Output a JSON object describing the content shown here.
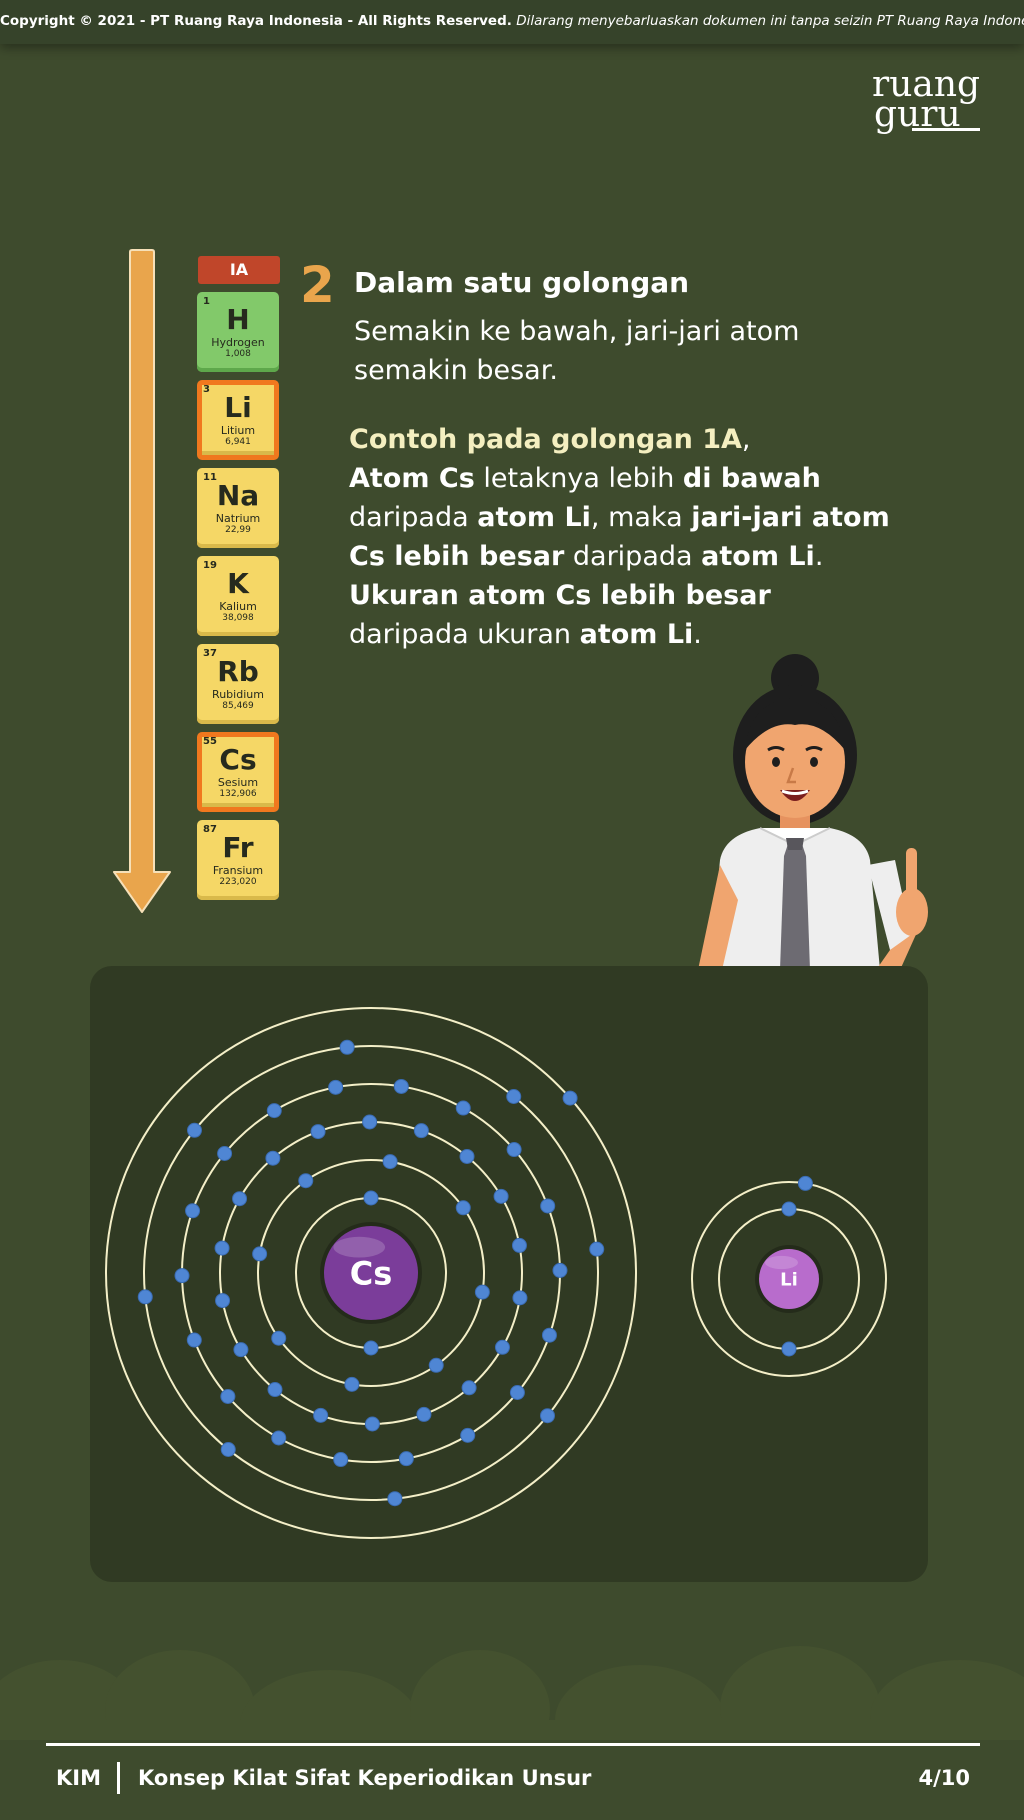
{
  "copyright": {
    "bold": "Copyright © 2021 - PT Ruang Raya Indonesia - All Rights Reserved.",
    "italic": "Dilarang menyebarluaskan dokumen ini tanpa seizin PT Ruang Raya Indonesia."
  },
  "logo": {
    "line1": "ruang",
    "line2": "guru"
  },
  "table": {
    "group": "IA",
    "elements": [
      {
        "num": "1",
        "sym": "H",
        "name": "Hydrogen",
        "mass": "1,008"
      },
      {
        "num": "3",
        "sym": "Li",
        "name": "Litium",
        "mass": "6,941"
      },
      {
        "num": "11",
        "sym": "Na",
        "name": "Natrium",
        "mass": "22,99"
      },
      {
        "num": "19",
        "sym": "K",
        "name": "Kalium",
        "mass": "38,098"
      },
      {
        "num": "37",
        "sym": "Rb",
        "name": "Rubidium",
        "mass": "85,469"
      },
      {
        "num": "55",
        "sym": "Cs",
        "name": "Sesium",
        "mass": "132,906"
      },
      {
        "num": "87",
        "sym": "Fr",
        "name": "Fransium",
        "mass": "223,020"
      }
    ]
  },
  "point": {
    "number": "2",
    "heading": "Dalam satu golongan",
    "text": "Semakin ke bawah, jari-jari atom semakin besar."
  },
  "example": {
    "t1": "Contoh pada golongan 1A",
    "t2": ",",
    "t3": "Atom Cs",
    "t4": " letaknya lebih ",
    "t5": "di bawah",
    "t6": "daripada ",
    "t7": "atom Li",
    "t8": ", maka ",
    "t9": "jari-jari atom",
    "t10": "Cs lebih besar",
    "t11": " daripada ",
    "t12": "atom Li",
    "t13": ".",
    "t14": "Ukuran atom Cs lebih besar",
    "t15": "daripada ukuran ",
    "t16": "atom Li",
    "t17": "."
  },
  "atoms": {
    "cs": {
      "label": "Cs",
      "electrons": [
        2,
        8,
        18,
        18,
        8,
        1
      ],
      "nucleus_color": "#7b3d9a"
    },
    "li": {
      "label": "Li",
      "electrons": [
        2,
        1
      ],
      "nucleus_color": "#b86ccc"
    },
    "electron_color": "#4f86d4",
    "orbit_color": "#f4efc8"
  },
  "footer": {
    "code": "KIM",
    "title": "Konsep Kilat Sifat Keperiodikan Unsur",
    "page": "4/10"
  },
  "colors": {
    "background": "#3e4b2d",
    "board": "#303a23",
    "accent_orange": "#e9a54c",
    "highlight_yellow": "#f4efc0",
    "cell_yellow": "#f5d766",
    "cell_green": "#82c96a",
    "cell_highlight_border": "#f0781e",
    "group_header": "#c0462a"
  }
}
